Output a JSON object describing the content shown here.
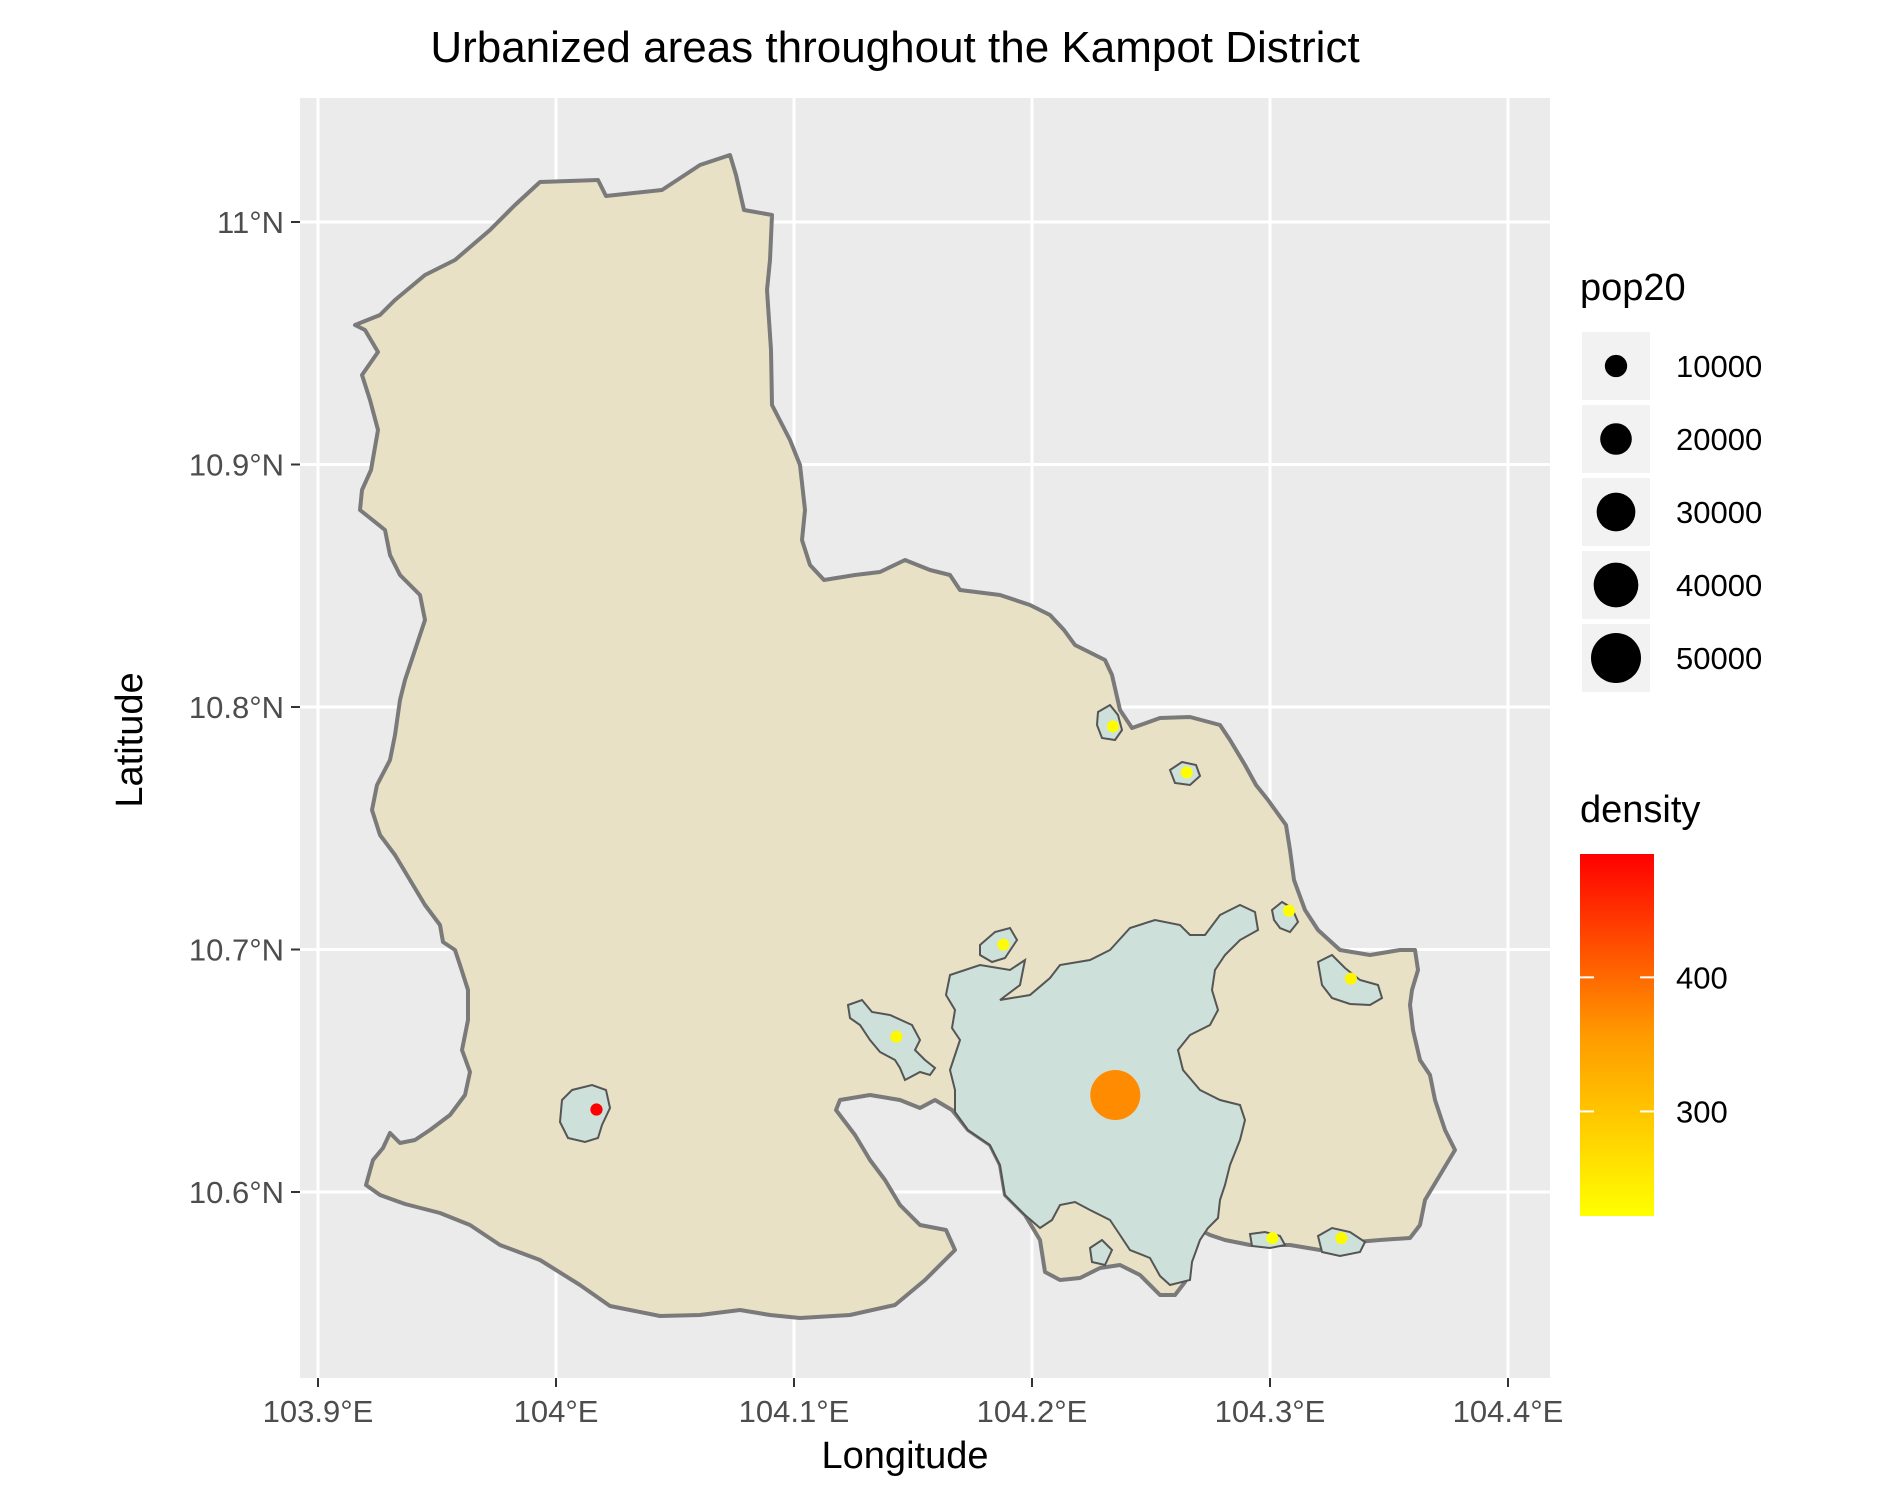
{
  "chart_data": {
    "type": "map",
    "title": "Urbanized areas throughout the Kampot District",
    "xlabel": "Longitude",
    "ylabel": "Latitude",
    "xlim": [
      103.89,
      104.41
    ],
    "ylim": [
      10.54,
      11.06
    ],
    "x_ticks": [
      {
        "value": 103.9,
        "label": "103.9°E"
      },
      {
        "value": 104.0,
        "label": "104°E"
      },
      {
        "value": 104.1,
        "label": "104.1°E"
      },
      {
        "value": 104.2,
        "label": "104.2°E"
      },
      {
        "value": 104.3,
        "label": "104.3°E"
      },
      {
        "value": 104.4,
        "label": "104.4°E"
      }
    ],
    "y_ticks": [
      {
        "value": 10.6,
        "label": "10.6°N"
      },
      {
        "value": 10.7,
        "label": "10.7°N"
      },
      {
        "value": 10.8,
        "label": "10.8°N"
      },
      {
        "value": 10.9,
        "label": "10.9°N"
      },
      {
        "value": 11.0,
        "label": "11°N"
      }
    ],
    "grid": true,
    "district_fill": "#e8e1c6",
    "district_stroke": "#7a7a7a",
    "urban_fill": "#cde0da",
    "panel_background": "#ebebeb",
    "legend_position": "right",
    "size_legend": {
      "title": "pop20",
      "entries": [
        {
          "label": "10000",
          "value": 10000
        },
        {
          "label": "20000",
          "value": 20000
        },
        {
          "label": "30000",
          "value": 30000
        },
        {
          "label": "40000",
          "value": 40000
        },
        {
          "label": "50000",
          "value": 50000
        }
      ]
    },
    "color_legend": {
      "title": "density",
      "min": 222,
      "max": 492,
      "colors": [
        "#ffff00",
        "#ff0000"
      ],
      "ticks": [
        {
          "value": 300,
          "label": "300"
        },
        {
          "value": 400,
          "label": "400"
        }
      ]
    },
    "points": [
      {
        "lon": 104.017,
        "lat": 10.634,
        "pop20": 3000,
        "density": 492
      },
      {
        "lon": 104.235,
        "lat": 10.64,
        "pop20": 50000,
        "density": 370
      },
      {
        "lon": 104.143,
        "lat": 10.664,
        "pop20": 2000,
        "density": 230
      },
      {
        "lon": 104.188,
        "lat": 10.702,
        "pop20": 1500,
        "density": 228
      },
      {
        "lon": 104.234,
        "lat": 10.792,
        "pop20": 1500,
        "density": 228
      },
      {
        "lon": 104.265,
        "lat": 10.773,
        "pop20": 1200,
        "density": 225
      },
      {
        "lon": 104.308,
        "lat": 10.716,
        "pop20": 1200,
        "density": 225
      },
      {
        "lon": 104.334,
        "lat": 10.688,
        "pop20": 2000,
        "density": 235
      },
      {
        "lon": 104.301,
        "lat": 10.581,
        "pop20": 1000,
        "density": 222
      },
      {
        "lon": 104.33,
        "lat": 10.581,
        "pop20": 1800,
        "density": 230
      }
    ]
  }
}
